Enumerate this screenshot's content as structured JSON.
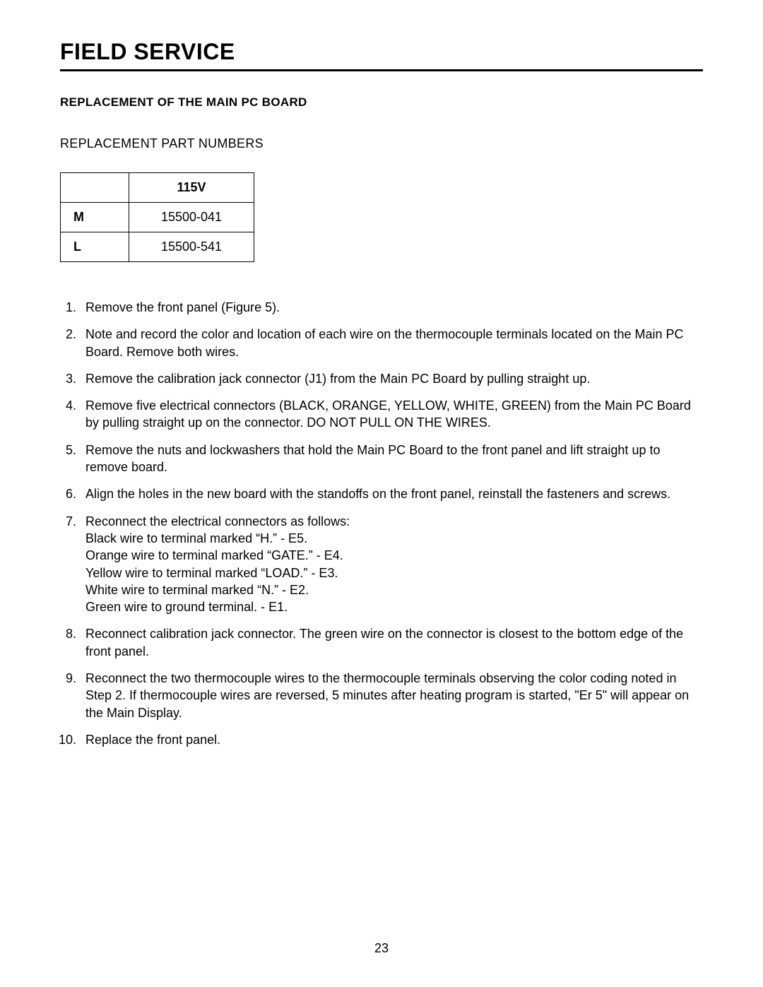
{
  "page": {
    "title": "FIELD SERVICE",
    "section_heading": "REPLACEMENT OF THE MAIN PC BOARD",
    "sub_heading": "REPLACEMENT PART NUMBERS",
    "page_number": "23"
  },
  "part_table": {
    "columns": [
      "",
      "115V"
    ],
    "rows": [
      [
        "M",
        "15500-041"
      ],
      [
        "L",
        "15500-541"
      ]
    ],
    "border_color": "#000000",
    "font_size": 18,
    "header_weight": 800,
    "cell_padding": 10
  },
  "steps": [
    {
      "text": "Remove the front panel (Figure 5)."
    },
    {
      "text": "Note and record the color and location of each wire on the thermocouple terminals located on the Main PC Board. Remove both wires."
    },
    {
      "text": "Remove the calibration jack connector (J1) from the Main PC Board by pulling straight up."
    },
    {
      "text": "Remove five electrical connectors (BLACK, ORANGE, YELLOW, WHITE, GREEN) from the Main PC Board by pulling straight up on the connector. DO NOT PULL ON THE WIRES."
    },
    {
      "text": "Remove the nuts and lockwashers that hold the Main PC Board to the front panel and lift straight up to remove board."
    },
    {
      "text": "Align the holes in the new board with the standoffs on the front panel, reinstall the fasteners and screws."
    },
    {
      "text": "Reconnect the electrical connectors as follows:",
      "sub": [
        "Black wire to terminal marked “H.”  - E5.",
        "Orange wire to terminal marked “GATE.”  - E4.",
        "Yellow wire to terminal marked “LOAD.”  - E3.",
        "White wire to terminal marked “N.”  - E2.",
        "Green wire to ground terminal.  - E1."
      ]
    },
    {
      "text": "Reconnect calibration jack connector. The green wire on the connector is closest to the bottom edge of the front panel."
    },
    {
      "text": "Reconnect the two thermocouple wires to the thermocouple terminals observing the color coding noted in Step 2. If thermocouple wires are reversed, 5 minutes after heating program is started, \"Er 5\" will appear on the Main Display."
    },
    {
      "text": "Replace the front panel."
    }
  ],
  "style": {
    "background_color": "#ffffff",
    "text_color": "#000000",
    "title_fontsize": 32,
    "heading_fontsize": 17,
    "subheading_fontsize": 18,
    "body_fontsize": 18,
    "rule_thickness": 3
  }
}
